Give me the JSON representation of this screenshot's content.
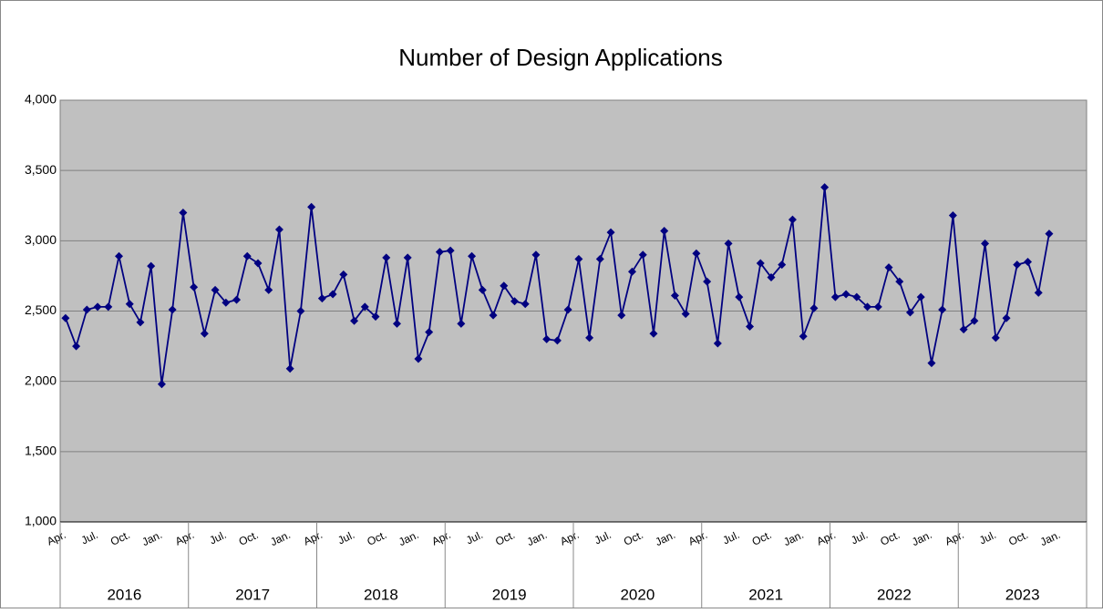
{
  "chart_data": {
    "type": "line",
    "title": "Number of Design Applications",
    "categories": [
      "Apr.",
      null,
      null,
      "Jul.",
      null,
      null,
      "Oct.",
      null,
      null,
      "Jan.",
      null,
      null,
      "Apr.",
      null,
      null,
      "Jul.",
      null,
      null,
      "Oct.",
      null,
      null,
      "Jan.",
      null,
      null,
      "Apr.",
      null,
      null,
      "Jul.",
      null,
      null,
      "Oct.",
      null,
      null,
      "Jan.",
      null,
      null,
      "Apr.",
      null,
      null,
      "Jul.",
      null,
      null,
      "Oct.",
      null,
      null,
      "Jan.",
      null,
      null,
      "Apr.",
      null,
      null,
      "Jul.",
      null,
      null,
      "Oct.",
      null,
      null,
      "Jan.",
      null,
      null,
      "Apr.",
      null,
      null,
      "Jul.",
      null,
      null,
      "Oct.",
      null,
      null,
      "Jan.",
      null,
      null,
      "Apr.",
      null,
      null,
      "Jul.",
      null,
      null,
      "Oct.",
      null,
      null,
      "Jan.",
      null,
      null,
      "Apr.",
      null,
      null,
      "Jul.",
      null,
      null,
      "Oct.",
      null,
      null,
      "Jan.",
      null,
      null
    ],
    "groups": [
      "2016",
      "2017",
      "2018",
      "2019",
      "2020",
      "2021",
      "2022",
      "2023"
    ],
    "series": [
      {
        "name": "Number of Design Applications",
        "color": "#000080",
        "values": [
          2450,
          2250,
          2510,
          2530,
          2530,
          2890,
          2550,
          2420,
          2820,
          1980,
          2510,
          3200,
          2670,
          2340,
          2650,
          2560,
          2580,
          2890,
          2840,
          2650,
          3080,
          2090,
          2500,
          3240,
          2590,
          2620,
          2760,
          2430,
          2530,
          2460,
          2880,
          2410,
          2880,
          2160,
          2350,
          2920,
          2930,
          2410,
          2890,
          2650,
          2470,
          2680,
          2570,
          2550,
          2900,
          2300,
          2290,
          2510,
          2870,
          2310,
          2870,
          3060,
          2470,
          2780,
          2900,
          2340,
          3070,
          2610,
          2480,
          2910,
          2710,
          2270,
          2980,
          2600,
          2390,
          2840,
          2740,
          2830,
          3150,
          2320,
          2520,
          3380,
          2600,
          2620,
          2600,
          2530,
          2530,
          2810,
          2710,
          2490,
          2600,
          2130,
          2510,
          3180,
          2370,
          2430,
          2980,
          2310,
          2450,
          2830,
          2850,
          2630,
          3050,
          null,
          null,
          null
        ]
      }
    ],
    "ylim": [
      1000,
      4000
    ],
    "yticks": [
      {
        "value": 1000,
        "label": "1,000"
      },
      {
        "value": 1500,
        "label": "1,500"
      },
      {
        "value": 2000,
        "label": "2,000"
      },
      {
        "value": 2500,
        "label": "2,500"
      },
      {
        "value": 3000,
        "label": "3,000"
      },
      {
        "value": 3500,
        "label": "3,500"
      },
      {
        "value": 4000,
        "label": "4,000"
      }
    ],
    "grid": true,
    "plot_color": "#c0c0c0"
  }
}
